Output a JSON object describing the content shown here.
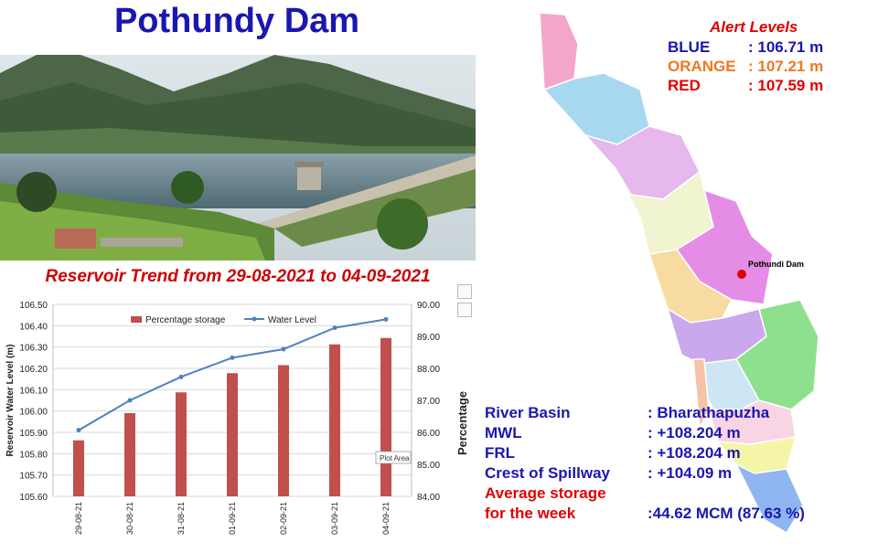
{
  "title": "Pothundy Dam",
  "trend_title": "Reservoir Trend from 29-08-2021 to 04-09-2021",
  "alert_levels": {
    "heading": "Alert Levels",
    "items": [
      {
        "label": "BLUE",
        "value": ": 106.71 m",
        "color": "#1a16b0"
      },
      {
        "label": "ORANGE",
        "value": ": 107.21 m",
        "color": "#f07820"
      },
      {
        "label": "RED",
        "value": ": 107.59 m",
        "color": "#e00000"
      }
    ]
  },
  "map_label": "Pothundi Dam",
  "info": {
    "river_basin": {
      "label": "River Basin",
      "value": ": Bharathapuzha"
    },
    "mwl": {
      "label": "MWL",
      "value": ": +108.204 m"
    },
    "frl": {
      "label": "FRL",
      "value": ": +108.204 m"
    },
    "crest": {
      "label": "Crest of Spillway",
      "value": ": +104.09 m"
    },
    "avg_label_1": "Average storage",
    "avg_label_2": "for the week",
    "avg_value": ":44.62 MCM (87.63 %)"
  },
  "plot_area_tooltip": "Plot Area",
  "chart_data": {
    "type": "bar+line",
    "categories": [
      "29-08-21",
      "30-08-21",
      "31-08-21",
      "01-09-21",
      "02-09-21",
      "03-09-21",
      "04-09-21"
    ],
    "series": [
      {
        "name": "Percentage storage",
        "type": "bar",
        "axis": "right",
        "color": "#c0504d",
        "values": [
          85.75,
          86.6,
          87.25,
          87.85,
          88.1,
          88.75,
          88.95
        ]
      },
      {
        "name": "Water Level",
        "type": "line",
        "axis": "left",
        "color": "#4f81bd",
        "values": [
          105.91,
          106.05,
          106.16,
          106.25,
          106.29,
          106.39,
          106.43
        ]
      }
    ],
    "ylabel": "Reservoir Water Level (m)",
    "y2label": "Percentage",
    "ylim": [
      105.6,
      106.5
    ],
    "yticks": [
      "105.60",
      "105.70",
      "105.80",
      "105.90",
      "106.00",
      "106.10",
      "106.20",
      "106.30",
      "106.40",
      "106.50"
    ],
    "y2lim": [
      84,
      90
    ],
    "y2ticks": [
      "84.00",
      "85.00",
      "86.00",
      "87.00",
      "88.00",
      "89.00",
      "90.00"
    ],
    "grid": true,
    "legend": "top"
  }
}
